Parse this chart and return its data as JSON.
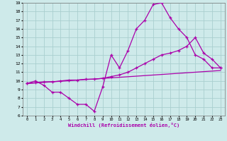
{
  "xlabel": "Windchill (Refroidissement éolien,°C)",
  "xlim": [
    -0.5,
    23.5
  ],
  "ylim": [
    6,
    19
  ],
  "xticks": [
    0,
    1,
    2,
    3,
    4,
    5,
    6,
    7,
    8,
    9,
    10,
    11,
    12,
    13,
    14,
    15,
    16,
    17,
    18,
    19,
    20,
    21,
    22,
    23
  ],
  "yticks": [
    6,
    7,
    8,
    9,
    10,
    11,
    12,
    13,
    14,
    15,
    16,
    17,
    18,
    19
  ],
  "bg_color": "#ceeaea",
  "grid_color": "#aacfcf",
  "line_color": "#aa00aa",
  "curve1_x": [
    0,
    1,
    2,
    3,
    4,
    5,
    6,
    7,
    8,
    9,
    10,
    11,
    12,
    13,
    14,
    15,
    16,
    17,
    18,
    19,
    20,
    21,
    22,
    23
  ],
  "curve1_y": [
    9.7,
    10.0,
    9.5,
    8.7,
    8.7,
    8.0,
    7.3,
    7.3,
    6.5,
    9.3,
    13.0,
    11.5,
    13.5,
    16.0,
    17.0,
    18.8,
    19.0,
    17.3,
    16.0,
    15.0,
    13.0,
    12.5,
    11.5,
    11.5
  ],
  "curve2_x": [
    0,
    1,
    2,
    3,
    4,
    5,
    6,
    7,
    8,
    9,
    10,
    11,
    12,
    13,
    14,
    15,
    16,
    17,
    18,
    19,
    20,
    21,
    22,
    23
  ],
  "curve2_y": [
    9.7,
    9.8,
    9.9,
    9.9,
    10.0,
    10.1,
    10.1,
    10.2,
    10.2,
    10.3,
    10.5,
    10.7,
    11.0,
    11.5,
    12.0,
    12.5,
    13.0,
    13.2,
    13.5,
    14.0,
    15.0,
    13.2,
    12.5,
    11.5
  ],
  "curve3_x": [
    0,
    23
  ],
  "curve3_y": [
    9.7,
    11.2
  ]
}
